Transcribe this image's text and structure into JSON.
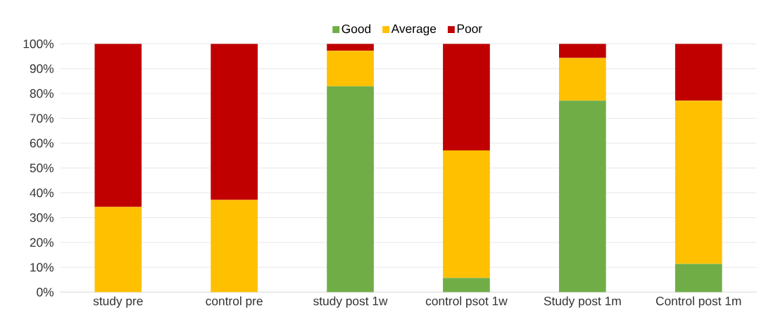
{
  "chart_data": {
    "type": "bar",
    "stacked": true,
    "categories": [
      "study pre",
      "control pre",
      "study post 1w",
      "control psot 1w",
      "Study post 1m",
      "Control post 1m"
    ],
    "series": [
      {
        "name": "Good",
        "color": "#70ad47",
        "values": [
          0,
          0,
          82.9,
          5.7,
          77.1,
          11.4
        ]
      },
      {
        "name": "Average",
        "color": "#ffc000",
        "values": [
          34.3,
          37.1,
          14.3,
          51.4,
          17.2,
          65.7
        ]
      },
      {
        "name": "Poor",
        "color": "#c00000",
        "values": [
          65.7,
          62.9,
          2.8,
          42.9,
          5.7,
          22.9
        ]
      }
    ],
    "ylim": [
      0,
      100
    ],
    "yticks": [
      {
        "value": 0,
        "label": "0%"
      },
      {
        "value": 10,
        "label": "10%"
      },
      {
        "value": 20,
        "label": "20%"
      },
      {
        "value": 30,
        "label": "30%"
      },
      {
        "value": 40,
        "label": "40%"
      },
      {
        "value": 50,
        "label": "50%"
      },
      {
        "value": 60,
        "label": "60%"
      },
      {
        "value": 70,
        "label": "70%"
      },
      {
        "value": 80,
        "label": "80%"
      },
      {
        "value": 90,
        "label": "90%"
      },
      {
        "value": 100,
        "label": "100%"
      }
    ],
    "grid": "y",
    "legend": "top"
  }
}
